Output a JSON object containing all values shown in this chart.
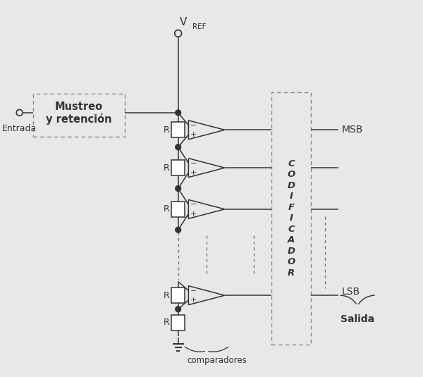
{
  "bg_color": "#e8e8e8",
  "line_color": "#333333",
  "box_fill": "#f5f5f5",
  "white_fill": "#ffffff",
  "vref_label": "V",
  "vref_sub": "REF",
  "entrada_label": "Entrada",
  "mustreo_line1": "Mustreo",
  "mustreo_line2": "y retención",
  "cod_text": "C\nO\nD\nI\nF\nI\nC\nA\nD\nO\nR",
  "msb_label": "MSB",
  "lsb_label": "LSB",
  "salida_label": "Salida",
  "comparadores_label": "comparadores",
  "R_label": "R",
  "fig_width": 6.0,
  "fig_height": 5.35,
  "dpi": 100
}
